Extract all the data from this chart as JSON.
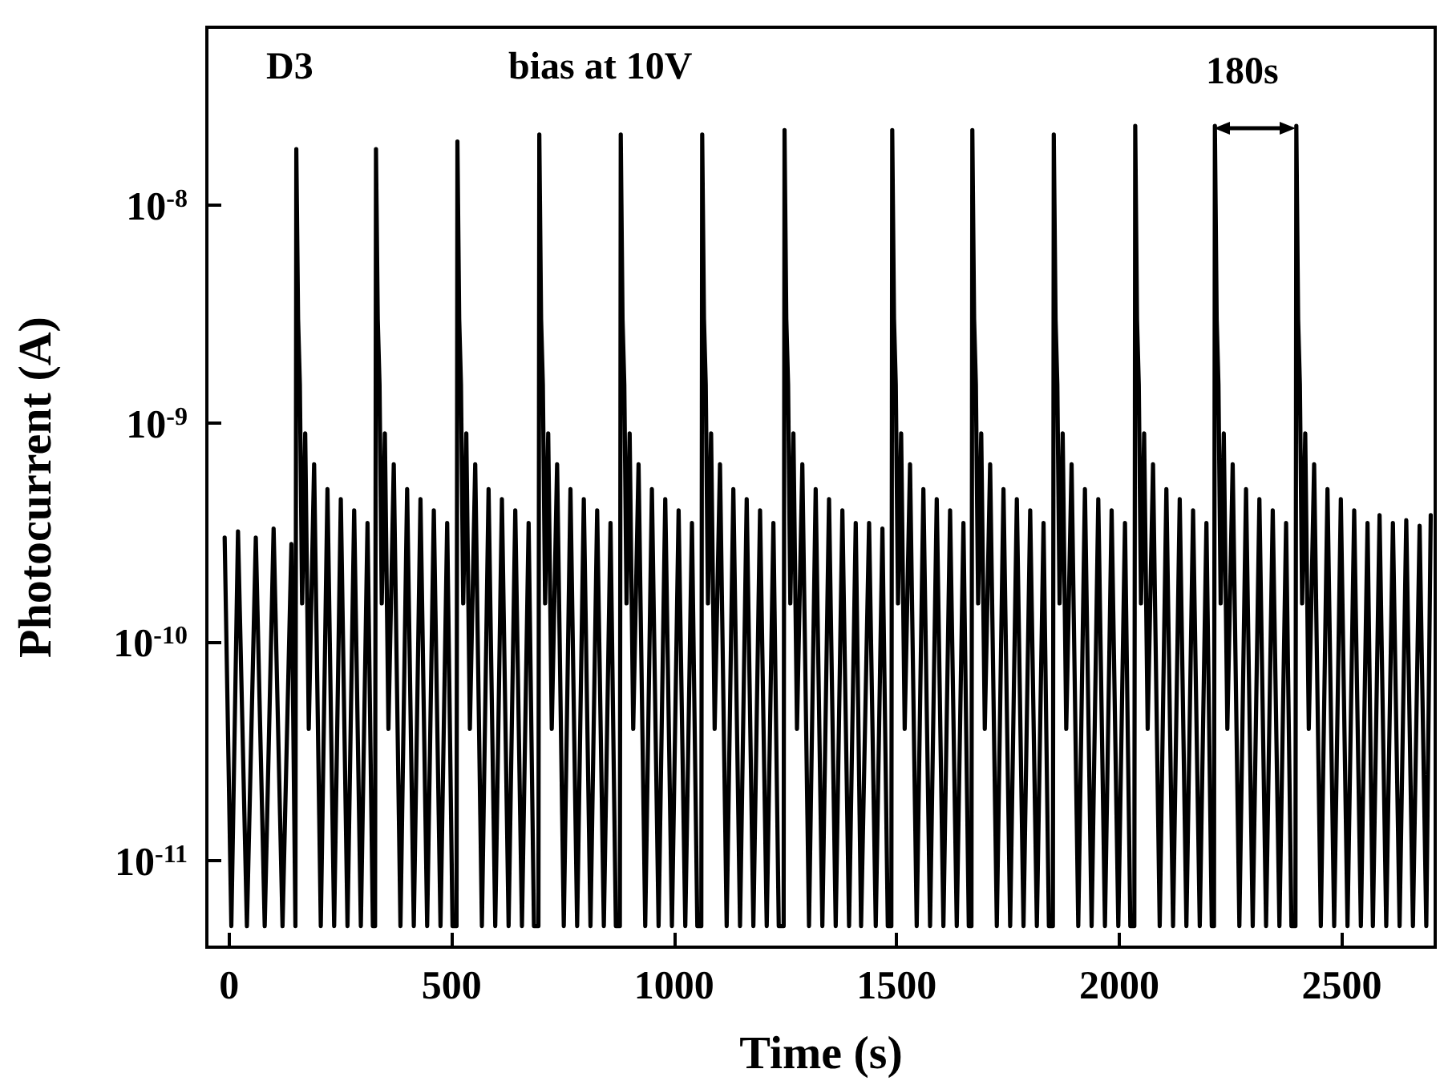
{
  "chart_data": {
    "type": "line",
    "xlabel": "Time (s)",
    "ylabel": "Photocurrent (A)",
    "annotations": [
      "D3",
      "bias at 10V",
      "180s"
    ],
    "log": "y",
    "marker": "none",
    "line_style": "solid",
    "color": "#000000",
    "xlim": [
      -50,
      2710
    ],
    "xticks": [
      0,
      500,
      1000,
      1500,
      2000,
      2500
    ],
    "ylim": [
      4e-12,
      6.5e-08
    ],
    "yticks": [
      {
        "value": 1e-11,
        "label": "10$^{-11}$"
      },
      {
        "value": 1e-10,
        "label": "10$^{-10}$"
      },
      {
        "value": 1e-09,
        "label": "10$^{-9}$"
      },
      {
        "value": 1e-08,
        "label": "10$^{-8}$"
      }
    ],
    "x": [
      -10,
      5,
      20,
      40,
      60,
      80,
      100,
      120,
      140,
      149,
      151,
      155,
      159,
      164,
      171,
      179,
      191,
      206,
      221,
      236,
      251,
      266,
      281,
      296,
      311,
      323,
      328,
      330,
      334,
      338,
      343,
      350,
      358,
      370,
      385,
      400,
      415,
      430,
      445,
      460,
      475,
      490,
      502,
      511,
      513,
      517,
      521,
      526,
      533,
      541,
      553,
      568,
      583,
      598,
      613,
      628,
      643,
      658,
      673,
      685,
      695,
      697,
      701,
      705,
      710,
      717,
      725,
      737,
      752,
      767,
      782,
      797,
      812,
      827,
      842,
      857,
      869,
      878,
      880,
      884,
      888,
      893,
      900,
      908,
      920,
      935,
      950,
      965,
      980,
      995,
      1010,
      1025,
      1040,
      1052,
      1061,
      1063,
      1067,
      1071,
      1076,
      1083,
      1091,
      1103,
      1118,
      1133,
      1148,
      1163,
      1178,
      1193,
      1208,
      1223,
      1235,
      1246,
      1248,
      1252,
      1256,
      1261,
      1268,
      1276,
      1288,
      1303,
      1318,
      1333,
      1348,
      1363,
      1378,
      1393,
      1408,
      1420,
      1438,
      1453,
      1468,
      1480,
      1488,
      1490,
      1494,
      1498,
      1503,
      1510,
      1518,
      1530,
      1545,
      1560,
      1575,
      1590,
      1605,
      1620,
      1635,
      1650,
      1662,
      1668,
      1670,
      1674,
      1678,
      1683,
      1690,
      1698,
      1710,
      1725,
      1740,
      1755,
      1770,
      1785,
      1800,
      1815,
      1830,
      1842,
      1851,
      1853,
      1857,
      1861,
      1866,
      1873,
      1881,
      1893,
      1908,
      1923,
      1938,
      1953,
      1968,
      1983,
      1998,
      2013,
      2025,
      2034,
      2036,
      2040,
      2044,
      2049,
      2056,
      2064,
      2076,
      2091,
      2106,
      2121,
      2136,
      2151,
      2166,
      2181,
      2196,
      2208,
      2213,
      2215,
      2219,
      2223,
      2228,
      2235,
      2243,
      2255,
      2270,
      2285,
      2300,
      2315,
      2330,
      2345,
      2360,
      2375,
      2387,
      2396,
      2398,
      2402,
      2406,
      2411,
      2418,
      2426,
      2438,
      2453,
      2468,
      2483,
      2498,
      2513,
      2528,
      2543,
      2558,
      2570,
      2585,
      2600,
      2615,
      2630,
      2645,
      2660,
      2675,
      2690,
      2700
    ],
    "values": [
      3e-10,
      5e-12,
      3.2e-10,
      5e-12,
      3e-10,
      5e-12,
      3.3e-10,
      5e-12,
      2.8e-10,
      5e-12,
      1.8e-08,
      3e-09,
      1.5e-09,
      1.5e-10,
      9e-10,
      4e-11,
      6.5e-10,
      5e-12,
      5e-10,
      5e-12,
      4.5e-10,
      5e-12,
      4e-10,
      5e-12,
      3.5e-10,
      5e-12,
      5e-12,
      1.8e-08,
      3e-09,
      1.5e-09,
      1.5e-10,
      9e-10,
      4e-11,
      6.5e-10,
      5e-12,
      5e-10,
      5e-12,
      4.5e-10,
      5e-12,
      4e-10,
      5e-12,
      3.5e-10,
      5e-12,
      5e-12,
      1.95e-08,
      3e-09,
      1.5e-09,
      1.5e-10,
      9e-10,
      4e-11,
      6.5e-10,
      5e-12,
      5e-10,
      5e-12,
      4.5e-10,
      5e-12,
      4e-10,
      5e-12,
      3.5e-10,
      5e-12,
      5e-12,
      2.1e-08,
      3e-09,
      1.5e-09,
      1.5e-10,
      9e-10,
      4e-11,
      6.5e-10,
      5e-12,
      5e-10,
      5e-12,
      4.5e-10,
      5e-12,
      4e-10,
      5e-12,
      3.5e-10,
      5e-12,
      5e-12,
      2.1e-08,
      3e-09,
      1.5e-09,
      1.5e-10,
      9e-10,
      4e-11,
      6.5e-10,
      5e-12,
      5e-10,
      5e-12,
      4.5e-10,
      5e-12,
      4e-10,
      5e-12,
      3.5e-10,
      5e-12,
      5e-12,
      2.1e-08,
      3e-09,
      1.5e-09,
      1.5e-10,
      9e-10,
      4e-11,
      6.5e-10,
      5e-12,
      5e-10,
      5e-12,
      4.5e-10,
      5e-12,
      4e-10,
      5e-12,
      3.5e-10,
      5e-12,
      5e-12,
      2.2e-08,
      3e-09,
      1.5e-09,
      1.5e-10,
      9e-10,
      4e-11,
      6.5e-10,
      5e-12,
      5e-10,
      5e-12,
      4.5e-10,
      5e-12,
      4e-10,
      5e-12,
      3.5e-10,
      5e-12,
      3.5e-10,
      5e-12,
      3.3e-10,
      5e-12,
      5e-12,
      2.2e-08,
      3e-09,
      1.5e-09,
      1.5e-10,
      9e-10,
      4e-11,
      6.5e-10,
      5e-12,
      5e-10,
      5e-12,
      4.5e-10,
      5e-12,
      4e-10,
      5e-12,
      3.5e-10,
      5e-12,
      5e-12,
      2.2e-08,
      3e-09,
      1.5e-09,
      1.5e-10,
      9e-10,
      4e-11,
      6.5e-10,
      5e-12,
      5e-10,
      5e-12,
      4.5e-10,
      5e-12,
      4e-10,
      5e-12,
      3.5e-10,
      5e-12,
      5e-12,
      2.1e-08,
      3e-09,
      1.5e-09,
      1.5e-10,
      9e-10,
      4e-11,
      6.5e-10,
      5e-12,
      5e-10,
      5e-12,
      4.5e-10,
      5e-12,
      4e-10,
      5e-12,
      3.5e-10,
      5e-12,
      5e-12,
      2.3e-08,
      3e-09,
      1.5e-09,
      1.5e-10,
      9e-10,
      4e-11,
      6.5e-10,
      5e-12,
      5e-10,
      5e-12,
      4.5e-10,
      5e-12,
      4e-10,
      5e-12,
      3.5e-10,
      5e-12,
      5e-12,
      2.3e-08,
      3e-09,
      1.5e-09,
      1.5e-10,
      9e-10,
      4e-11,
      6.5e-10,
      5e-12,
      5e-10,
      5e-12,
      4.5e-10,
      5e-12,
      4e-10,
      5e-12,
      3.5e-10,
      5e-12,
      5e-12,
      2.3e-08,
      3e-09,
      1.5e-09,
      1.5e-10,
      9e-10,
      4e-11,
      6.5e-10,
      5e-12,
      5e-10,
      5e-12,
      4.5e-10,
      5e-12,
      4e-10,
      5e-12,
      3.5e-10,
      5e-12,
      3.8e-10,
      5e-12,
      3.5e-10,
      5e-12,
      3.6e-10,
      5e-12,
      3.4e-10,
      5e-12,
      3.8e-10
    ]
  }
}
